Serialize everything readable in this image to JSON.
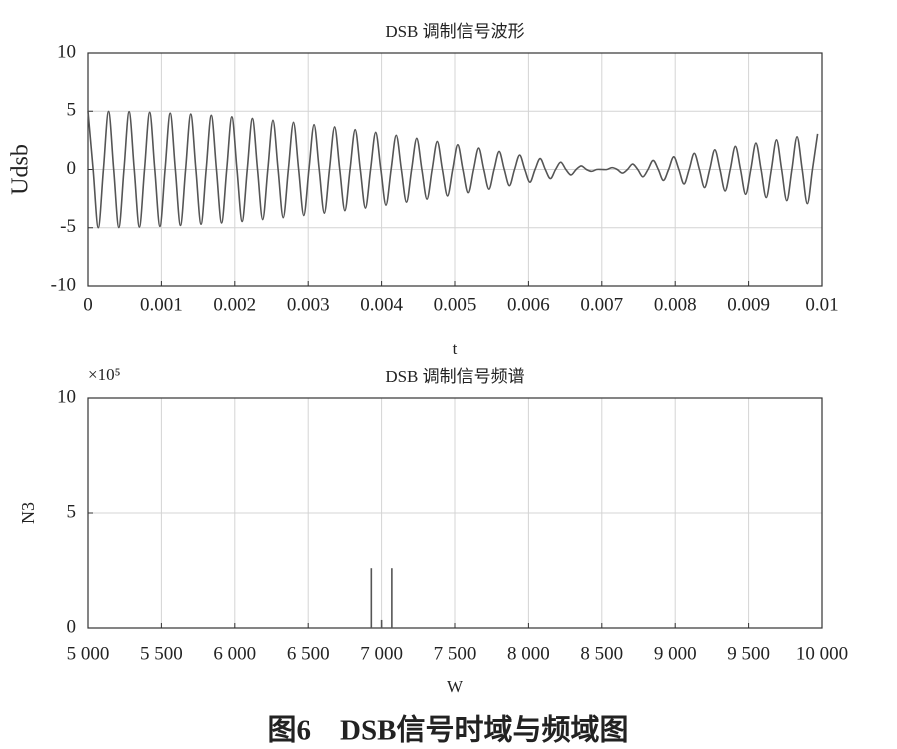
{
  "chart_data": [
    {
      "type": "line",
      "title": "DSB 调制信号波形",
      "xlabel": "t",
      "ylabel": "Udsb",
      "color": "#555555",
      "grid": true,
      "xlim": [
        0,
        0.01
      ],
      "xticks": [
        0,
        0.001,
        0.002,
        0.003,
        0.004,
        0.005,
        0.006,
        0.007,
        0.008,
        0.009,
        0.01
      ],
      "ylim": [
        -10,
        10
      ],
      "yticks": [
        -10,
        -5,
        0,
        5,
        10
      ],
      "x": [
        0.0,
        7e-05,
        0.00014,
        0.00021,
        0.00028,
        0.00035,
        0.00042,
        0.00049,
        0.00056,
        0.00063,
        0.0007,
        0.00077,
        0.00084,
        0.00091,
        0.00098,
        0.00105,
        0.00112,
        0.00119,
        0.00126,
        0.00133,
        0.0014,
        0.00147,
        0.00154,
        0.00161,
        0.00168,
        0.00175,
        0.00182,
        0.00189,
        0.00196,
        0.00203,
        0.0021,
        0.00217,
        0.00224,
        0.00231,
        0.00238,
        0.00245,
        0.00252,
        0.00259,
        0.00266,
        0.00273,
        0.0028,
        0.00287,
        0.00294,
        0.00301,
        0.00308,
        0.00315,
        0.00322,
        0.00329,
        0.00336,
        0.00343,
        0.0035,
        0.00357,
        0.00364,
        0.00371,
        0.00378,
        0.00385,
        0.00392,
        0.00399,
        0.00406,
        0.00413,
        0.0042,
        0.00427,
        0.00434,
        0.00441,
        0.00448,
        0.00455,
        0.00462,
        0.00469,
        0.00476,
        0.00483,
        0.0049,
        0.00497,
        0.00504,
        0.00511,
        0.00518,
        0.00525,
        0.00532,
        0.00539,
        0.00546,
        0.00553,
        0.0056,
        0.00567,
        0.00574,
        0.00581,
        0.00588,
        0.00595,
        0.00602,
        0.00609,
        0.00616,
        0.00623,
        0.0063,
        0.00637,
        0.00644,
        0.00651,
        0.00658,
        0.00665,
        0.00672,
        0.00679,
        0.00686,
        0.00693,
        0.007,
        0.00707,
        0.00714,
        0.00721,
        0.00728,
        0.00735,
        0.00742,
        0.00749,
        0.00756,
        0.00763,
        0.0077,
        0.00777,
        0.00784,
        0.00791,
        0.00798,
        0.00805,
        0.00812,
        0.00819,
        0.00826,
        0.00833,
        0.0084,
        0.00847,
        0.00854,
        0.00861,
        0.00868,
        0.00875,
        0.00882,
        0.00889,
        0.00896,
        0.00903,
        0.0091,
        0.00917,
        0.00924,
        0.00931,
        0.00938,
        0.00945,
        0.00952,
        0.00959,
        0.00966,
        0.00973,
        0.0098,
        0.00987,
        0.00994
      ],
      "values": [
        5.0,
        0,
        -5.0,
        0,
        4.99,
        0,
        -4.98,
        0,
        4.96,
        0,
        -4.94,
        0,
        4.91,
        0,
        -4.88,
        0,
        4.84,
        0,
        -4.8,
        0,
        4.76,
        0,
        -4.7,
        0,
        4.65,
        0,
        -4.59,
        0,
        4.52,
        0,
        -4.46,
        0,
        4.38,
        0,
        -4.3,
        0,
        4.22,
        0,
        -4.14,
        0,
        4.05,
        0,
        -3.95,
        0,
        3.85,
        0,
        -3.75,
        0,
        3.65,
        0,
        -3.54,
        0,
        3.42,
        0,
        -3.31,
        0,
        3.19,
        0,
        -3.06,
        0,
        2.94,
        0,
        -2.81,
        0,
        2.68,
        0,
        -2.55,
        0,
        2.41,
        0,
        -2.27,
        0,
        2.13,
        0,
        -1.99,
        0,
        1.84,
        0,
        -1.69,
        0,
        1.55,
        0,
        -1.39,
        0,
        1.24,
        0,
        -1.09,
        0,
        0.94,
        0,
        -0.78,
        0,
        0.63,
        0,
        -0.47,
        0,
        0.31,
        0,
        -0.16,
        0,
        0,
        0,
        0.16,
        0,
        -0.31,
        0,
        0.47,
        0,
        -0.63,
        0,
        0.78,
        0,
        -0.94,
        0,
        1.09,
        0,
        -1.24,
        0,
        1.39,
        0,
        -1.55,
        0,
        1.69,
        0,
        -1.84,
        0,
        1.99,
        0,
        -2.13,
        0,
        2.27,
        0,
        -2.41,
        0,
        2.55,
        0,
        -2.68,
        0,
        2.81,
        0,
        -2.94,
        0,
        3.06
      ]
    },
    {
      "type": "stem",
      "title": "DSB 调制信号频谱",
      "xlabel": "W",
      "ylabel": "N3",
      "y_scale_label": "×10⁵",
      "color": "#555555",
      "grid": true,
      "xlim": [
        5000,
        10000
      ],
      "xticks": [
        {
          "value": 5000,
          "label": "5 000"
        },
        {
          "value": 5500,
          "label": "5 500"
        },
        {
          "value": 6000,
          "label": "6 000"
        },
        {
          "value": 6500,
          "label": "6 500"
        },
        {
          "value": 7000,
          "label": "7 000"
        },
        {
          "value": 7500,
          "label": "7 500"
        },
        {
          "value": 8000,
          "label": "8 000"
        },
        {
          "value": 8500,
          "label": "8 500"
        },
        {
          "value": 9000,
          "label": "9 000"
        },
        {
          "value": 9500,
          "label": "9 500"
        },
        {
          "value": 10000,
          "label": "10 000"
        }
      ],
      "ylim": [
        0,
        10
      ],
      "yticks": [
        0,
        5,
        10
      ],
      "x": [
        6930,
        7000,
        7070
      ],
      "values": [
        2.6,
        0.35,
        2.6
      ]
    }
  ],
  "caption": "图6　DSB信号时域与频域图"
}
